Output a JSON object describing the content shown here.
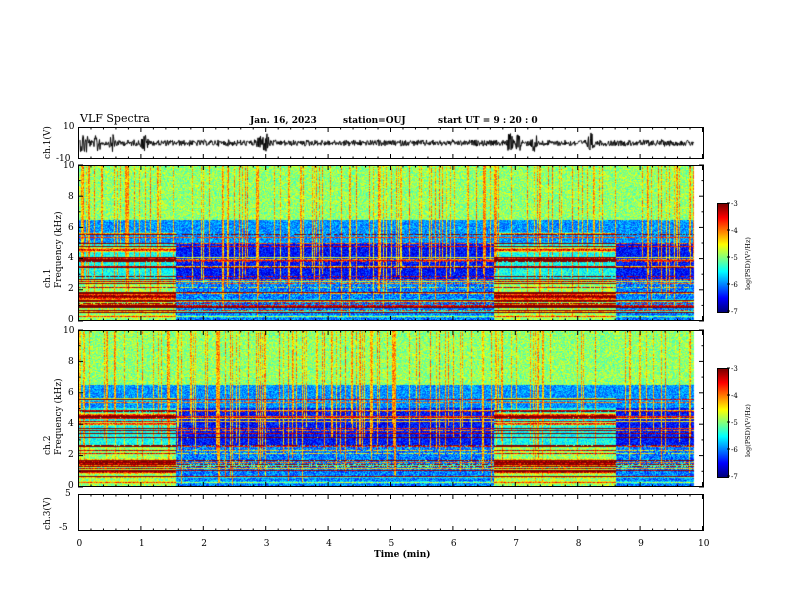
{
  "header": {
    "title": "VLF Spectra",
    "date": "Jan. 16, 2023",
    "station": "station=OUJ",
    "start": "start  UT =  9 : 20 : 0"
  },
  "chart_data": [
    {
      "type": "line",
      "name": "ch1-waveform",
      "ylabel": "ch.1(V)",
      "ylim": [
        -10,
        10
      ],
      "yticks": [
        "10",
        "-10"
      ],
      "xlim": [
        0,
        10
      ],
      "bursts_min": [
        0.05,
        0.12,
        0.3,
        0.55,
        1.05,
        2.9,
        3.0,
        6.9,
        7.05,
        7.3,
        8.2
      ]
    },
    {
      "type": "heatmap",
      "name": "ch1-spectrogram",
      "ylabel": "ch.1\nFrequency (kHz)",
      "ylim": [
        0,
        10
      ],
      "yticks": [
        "0",
        "2",
        "4",
        "6",
        "8",
        "10"
      ],
      "xlim": [
        0,
        10
      ],
      "data_end_min": 9.85,
      "active_intervals_min": [
        [
          0,
          1.55
        ],
        [
          6.65,
          8.6
        ]
      ],
      "colorbar": {
        "label": "log(PSD)(V²/Hz)",
        "range": [
          -7,
          -3
        ],
        "ticks": [
          "-3",
          "-4",
          "-5",
          "-6",
          "-7"
        ]
      }
    },
    {
      "type": "heatmap",
      "name": "ch2-spectrogram",
      "ylabel": "ch.2\nFrequency (kHz)",
      "ylim": [
        0,
        10
      ],
      "yticks": [
        "0",
        "2",
        "4",
        "6",
        "8",
        "10"
      ],
      "xlim": [
        0,
        10
      ],
      "data_end_min": 9.85,
      "active_intervals_min": [
        [
          0,
          1.55
        ],
        [
          6.65,
          8.6
        ]
      ],
      "colorbar": {
        "label": "log(PSD)(V²/Hz)",
        "range": [
          -7,
          -3
        ],
        "ticks": [
          "-3",
          "-4",
          "-5",
          "-6",
          "-7"
        ]
      }
    },
    {
      "type": "line",
      "name": "ch3-waveform",
      "ylabel": "ch.3(V)",
      "ylim": [
        -5,
        5
      ],
      "yticks": [
        "5",
        "-5"
      ],
      "xlim": [
        0,
        10
      ],
      "constant_value": 0,
      "xlabel": "Time (min)",
      "xticks": [
        "0",
        "1",
        "2",
        "3",
        "4",
        "5",
        "6",
        "7",
        "8",
        "9",
        "10"
      ]
    }
  ]
}
